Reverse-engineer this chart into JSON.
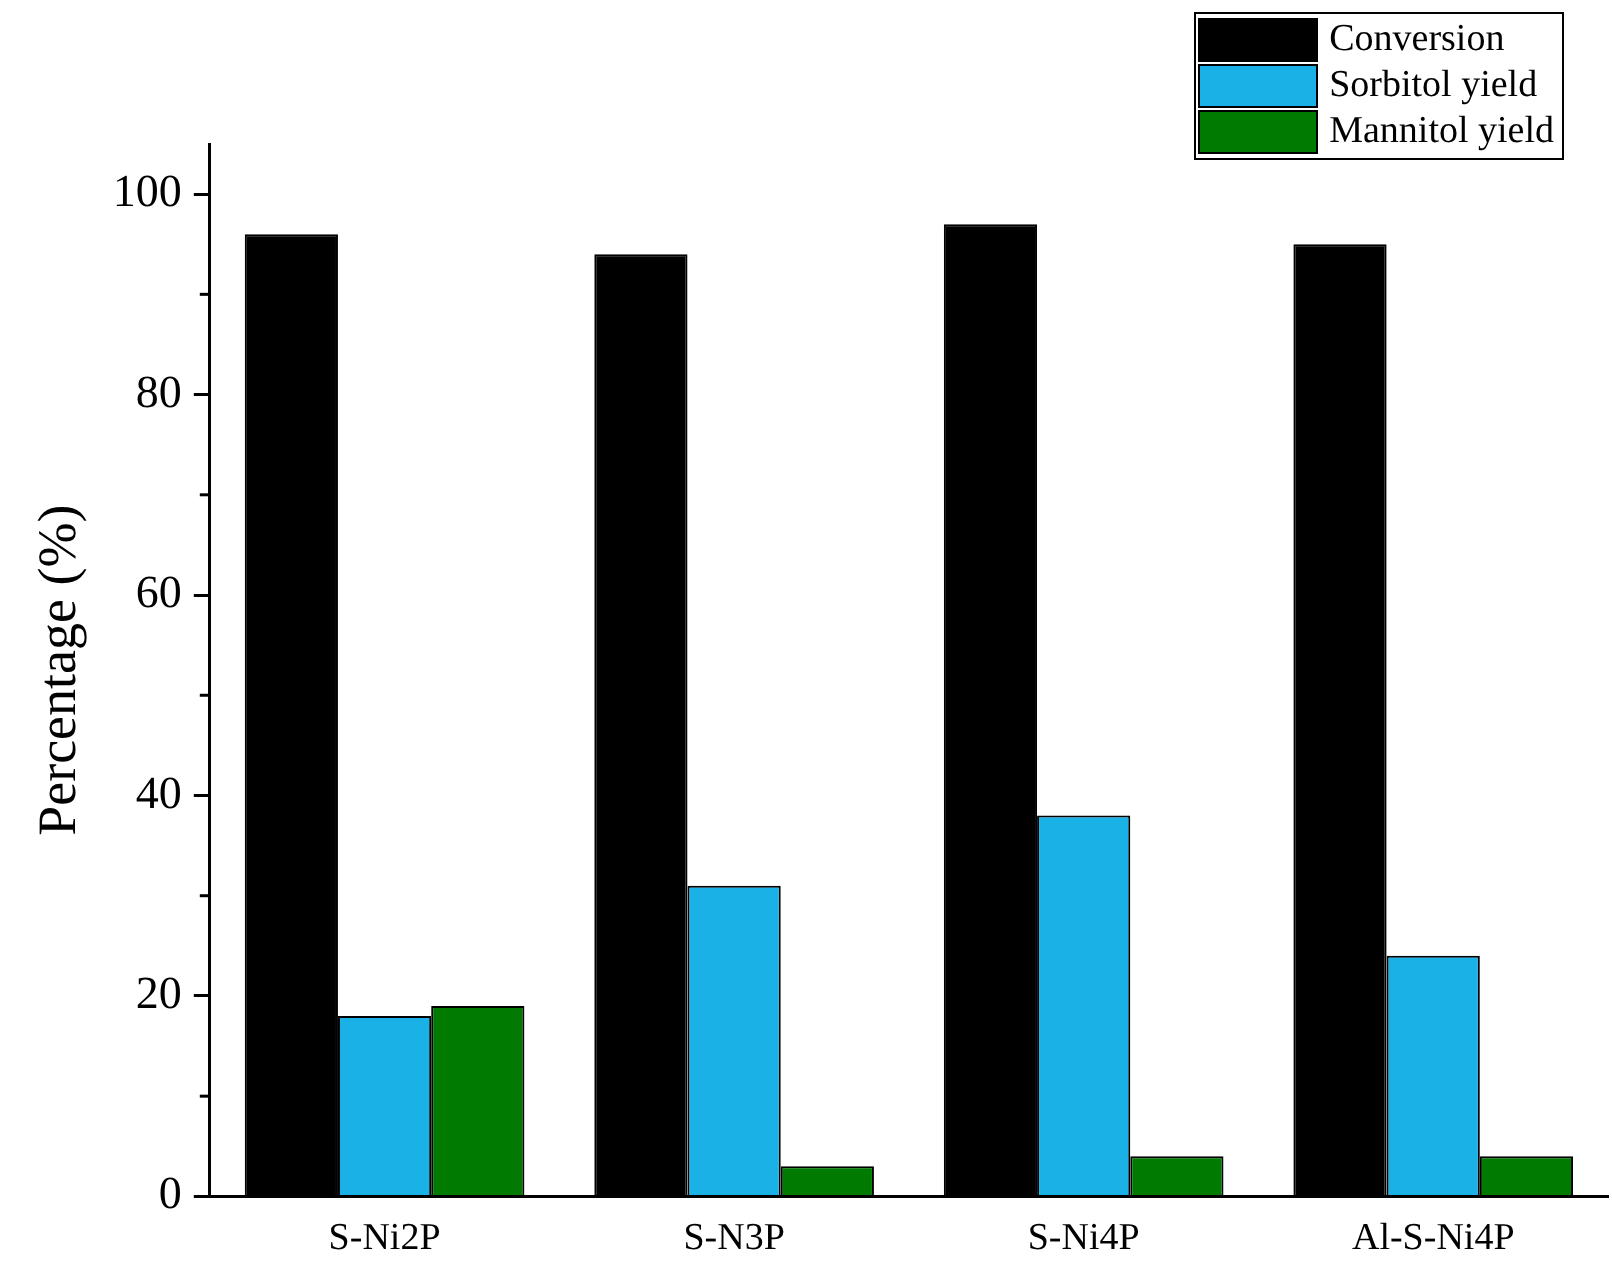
{
  "chart_data": {
    "type": "bar",
    "ylabel": "Percentage (%)",
    "categories": [
      "S-Ni2P",
      "S-N3P",
      "S-Ni4P",
      "Al-S-Ni4P"
    ],
    "series": [
      {
        "name": "Conversion",
        "color": "#000000",
        "values": [
          96,
          94,
          97,
          95
        ]
      },
      {
        "name": "Sorbitol yield",
        "color": "#1ab2e6",
        "values": [
          18,
          31,
          38,
          24
        ]
      },
      {
        "name": "Mannitol yield",
        "color": "#007a00",
        "values": [
          19,
          3,
          4,
          4
        ]
      }
    ],
    "ylim": [
      0,
      105
    ],
    "yticks": [
      0,
      {
        "value": 10,
        "label": null
      },
      20,
      {
        "value": 30,
        "label": null
      },
      40,
      {
        "value": 50,
        "label": null
      },
      60,
      {
        "value": 70,
        "label": null
      },
      80,
      {
        "value": 90,
        "label": null
      },
      100
    ],
    "grid": false,
    "legend": "top right"
  }
}
